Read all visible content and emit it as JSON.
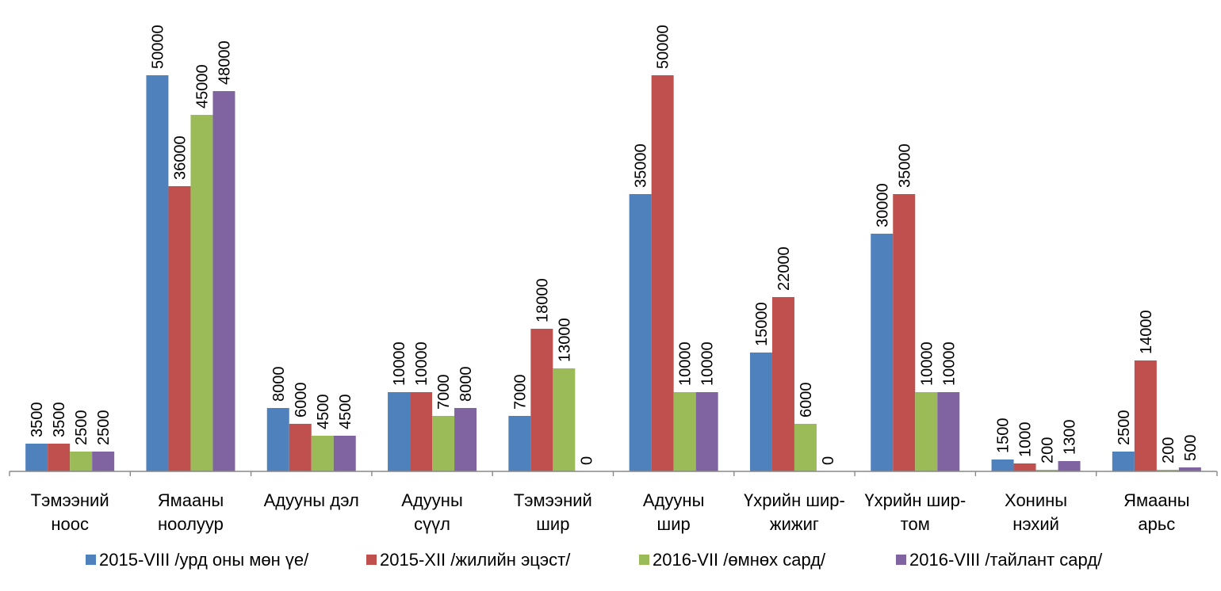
{
  "chart_data": {
    "type": "bar",
    "categories": [
      [
        "Тэмээний",
        "ноос"
      ],
      [
        "Ямааны",
        "ноолуур"
      ],
      [
        "Адууны дэл"
      ],
      [
        "Адууны",
        "сүүл"
      ],
      [
        "Тэмээний",
        "шир"
      ],
      [
        "Адууны",
        "шир"
      ],
      [
        "Үхрийн шир-",
        "жижиг"
      ],
      [
        "Үхрийн шир-",
        "том"
      ],
      [
        "Хонины",
        "нэхий"
      ],
      [
        "Ямааны",
        "арьс"
      ]
    ],
    "series": [
      {
        "name": "2015-VIII /урд оны мөн үе/",
        "color": "#4F81BD",
        "values": [
          3500,
          50000,
          8000,
          10000,
          7000,
          35000,
          15000,
          30000,
          1500,
          2500
        ]
      },
      {
        "name": "2015-XII /жилийн эцэст/",
        "color": "#C0504D",
        "values": [
          3500,
          36000,
          6000,
          10000,
          18000,
          50000,
          22000,
          35000,
          1000,
          14000
        ]
      },
      {
        "name": "2016-VII /өмнөх сард/",
        "color": "#9BBB59",
        "values": [
          2500,
          45000,
          4500,
          7000,
          13000,
          10000,
          6000,
          10000,
          200,
          200
        ]
      },
      {
        "name": "2016-VIII /тайлант сард/",
        "color": "#8064A2",
        "values": [
          2500,
          48000,
          4500,
          8000,
          0,
          10000,
          0,
          10000,
          1300,
          500
        ]
      }
    ],
    "ylim": [
      0,
      50000
    ],
    "legend": "bottom",
    "grid": false
  }
}
